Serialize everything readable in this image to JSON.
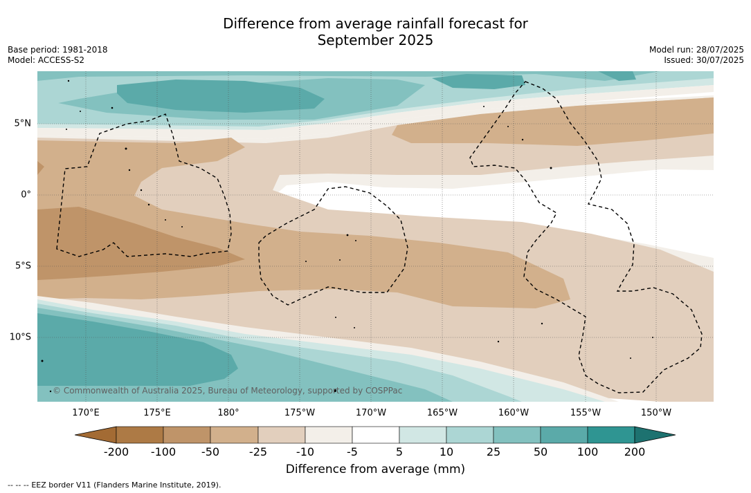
{
  "title": {
    "line1": "Difference from average rainfall forecast for",
    "line2": "September 2025"
  },
  "meta_left": {
    "base_period": "Base period: 1981-2018",
    "model": "Model: ACCESS-S2"
  },
  "meta_right": {
    "model_run": "Model run: 28/07/2025",
    "issued": "Issued: 30/07/2025"
  },
  "map": {
    "lon_labels": [
      "170°E",
      "175°E",
      "180°",
      "175°W",
      "170°W",
      "165°W",
      "160°W",
      "155°W",
      "150°W"
    ],
    "lat_labels": [
      "5°N",
      "0°",
      "5°S",
      "10°S"
    ],
    "credit": "© Commonwealth of Australia 2025, Bureau of Meteorology, supported by COSPPac",
    "gridlines": true
  },
  "colorbar": {
    "title": "Difference from average (mm)",
    "tick_labels": [
      "-200",
      "-100",
      "-50",
      "-25",
      "-10",
      "-5",
      "5",
      "10",
      "25",
      "50",
      "100",
      "200"
    ],
    "bin_colors": [
      "#a36b34",
      "#ad7a45",
      "#bf9469",
      "#d2b08c",
      "#e2cfbd",
      "#f3efe9",
      "#ffffff",
      "#d1e7e4",
      "#acd6d4",
      "#83c1bf",
      "#5baaa9",
      "#2f9592",
      "#1d7270"
    ],
    "extend": "both"
  },
  "legend_note": {
    "symbol": "--  --  --",
    "text": "EEZ border V11 (Flanders Marine Institute, 2019)."
  }
}
